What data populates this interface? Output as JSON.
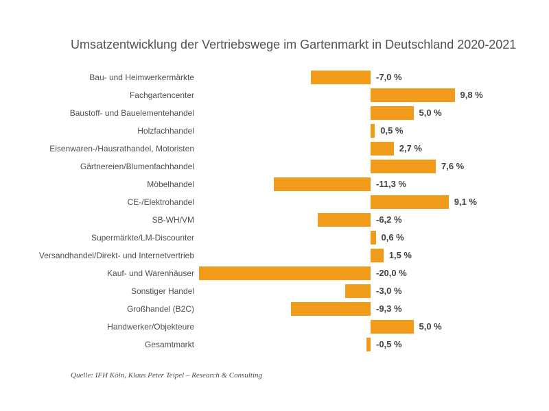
{
  "colors": {
    "bar": "#F09B19",
    "title_text": "#535355",
    "category_text": "#4E4E50",
    "value_text": "#424244",
    "background": "#FFFFFF"
  },
  "chart_data": {
    "type": "bar",
    "orientation": "horizontal",
    "title": "Umsatzentwicklung der Vertriebswege im Gartenmarkt in Deutschland 2020-2021",
    "categories": [
      "Bau- und Heimwerkermärkte",
      "Fachgartencenter",
      "Baustoff- und Bauelementehandel",
      "Holzfachhandel",
      "Eisenwaren-/Hausrathandel, Motoristen",
      "Gärtnereien/Blumenfachhandel",
      "Möbelhandel",
      "CE-/Elektrohandel",
      "SB-WH/VM",
      "Supermärkte/LM-Discounter",
      "Versandhandel/Direkt- und Internetvertrieb",
      "Kauf- und Warenhäuser",
      "Sonstiger Handel",
      "Großhandel (B2C)",
      "Handwerker/Objekteure",
      "Gesamtmarkt"
    ],
    "values": [
      -7.0,
      9.8,
      5.0,
      0.5,
      2.7,
      7.6,
      -11.3,
      9.1,
      -6.2,
      0.6,
      1.5,
      -20.0,
      -3.0,
      -9.3,
      5.0,
      -0.5
    ],
    "value_labels": [
      "-7,0 %",
      "9,8 %",
      "5,0 %",
      "0,5 %",
      "2,7 %",
      "7,6 %",
      "-11,3 %",
      "9,1 %",
      "-6,2 %",
      "0,6 %",
      "1,5 %",
      "-20,0 %",
      "-3,0 %",
      "-9,3 %",
      "5,0 %",
      "-0,5 %"
    ],
    "unit": "%",
    "xlim": [
      -20,
      10
    ],
    "grid": false,
    "legend": false,
    "value_label_position": "outside-end (positive: right of bar; negative: right of zero line)",
    "source": "Quelle: IFH Köln, Klaus Peter Teipel – Research & Consulting"
  }
}
